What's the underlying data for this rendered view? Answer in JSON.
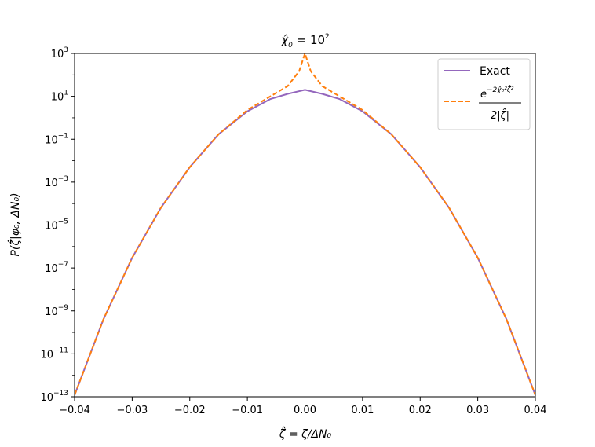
{
  "chart_data": {
    "type": "line",
    "title": "χ̂₀ = 10²",
    "title_parts": {
      "base": "χ̂",
      "sub": "0",
      "rhs": " = 10",
      "sup": "2"
    },
    "xlabel": "ζ̂ = ζ/ΔN₀",
    "ylabel": "P(ζ̂|φ₀, ΔN₀)",
    "xlim": [
      -0.04,
      0.04
    ],
    "ylim": [
      1e-13,
      1000.0
    ],
    "yscale": "log",
    "xticks": [
      -0.04,
      -0.03,
      -0.02,
      -0.01,
      0.0,
      0.01,
      0.02,
      0.03,
      0.04
    ],
    "xtick_labels": [
      "−0.04",
      "−0.03",
      "−0.02",
      "−0.01",
      "0.00",
      "0.01",
      "0.02",
      "0.03",
      "0.04"
    ],
    "ytick_exponents": [
      "3",
      "1",
      "−1",
      "−3",
      "−5",
      "−7",
      "−9",
      "−11",
      "−13"
    ],
    "ytick_values": [
      1000.0,
      10.0,
      0.1,
      0.001,
      1e-05,
      1e-07,
      1e-09,
      1e-11,
      1e-13
    ],
    "legend_position": "top-right",
    "legend": {
      "exact_label": "Exact",
      "approx_numerator": "e",
      "approx_exponent": "−2χ̂₀²ζ̂²",
      "approx_denominator": "2|ζ̂|"
    },
    "series": [
      {
        "name": "Exact",
        "color": "#9467bd",
        "style": "solid",
        "x": [
          -0.04,
          -0.035,
          -0.03,
          -0.025,
          -0.02,
          -0.015,
          -0.01,
          -0.006,
          -0.003,
          0.0,
          0.003,
          0.006,
          0.01,
          0.015,
          0.02,
          0.025,
          0.03,
          0.035,
          0.04
        ],
        "y": [
          1.2e-13,
          4e-10,
          3e-07,
          6.5e-05,
          0.005,
          0.17,
          2.0,
          7.5,
          13,
          20,
          13,
          7.5,
          2.0,
          0.17,
          0.005,
          6.5e-05,
          3e-07,
          4e-10,
          1.2e-13
        ]
      },
      {
        "name": "e^{-2χ̂₀²ζ̂²} / 2|ζ̂|",
        "color": "#ff7f0e",
        "style": "dashed",
        "x": [
          -0.04,
          -0.035,
          -0.03,
          -0.025,
          -0.02,
          -0.015,
          -0.01,
          -0.006,
          -0.003,
          -0.001,
          0.0,
          0.001,
          0.003,
          0.006,
          0.01,
          0.015,
          0.02,
          0.025,
          0.03,
          0.035,
          0.04
        ],
        "y": [
          1.2e-13,
          4e-10,
          3e-07,
          6.5e-05,
          0.005,
          0.17,
          2.3,
          10,
          30,
          150,
          1000,
          150,
          30,
          10,
          2.3,
          0.17,
          0.005,
          6.5e-05,
          3e-07,
          4e-10,
          1.2e-13
        ]
      }
    ]
  }
}
